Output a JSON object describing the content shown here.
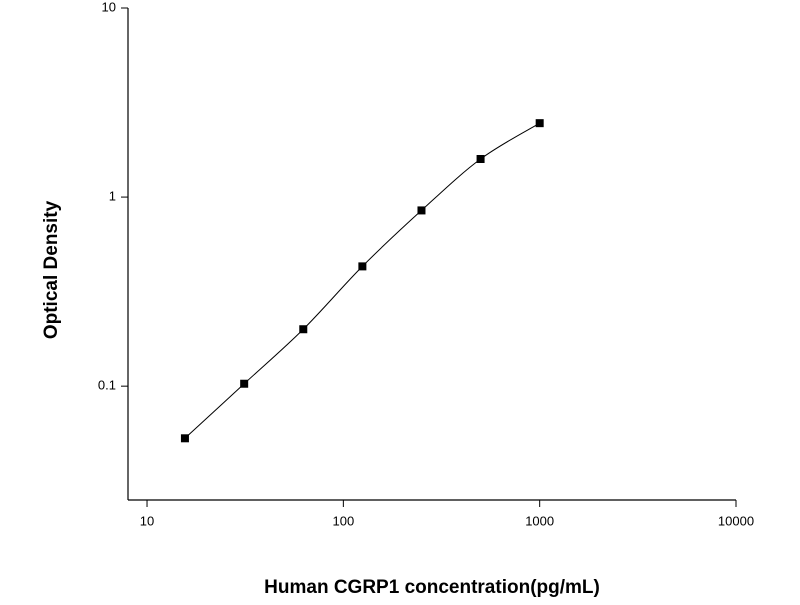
{
  "chart_data": {
    "type": "scatter",
    "xlabel": "Human CGRP1 concentration(pg/mL)",
    "ylabel": "Optical Density",
    "x": [
      15.6,
      31.25,
      62.5,
      125,
      250,
      500,
      1000
    ],
    "values": [
      0.053,
      0.103,
      0.2,
      0.43,
      0.85,
      1.59,
      2.46
    ],
    "color": "#000000",
    "xscale": "log",
    "yscale": "log",
    "xlim": [
      8,
      10000
    ],
    "ylim": [
      0.025,
      10
    ],
    "xticks": [
      10,
      100,
      1000,
      10000
    ],
    "yticks": [
      0.1,
      1,
      10
    ]
  }
}
